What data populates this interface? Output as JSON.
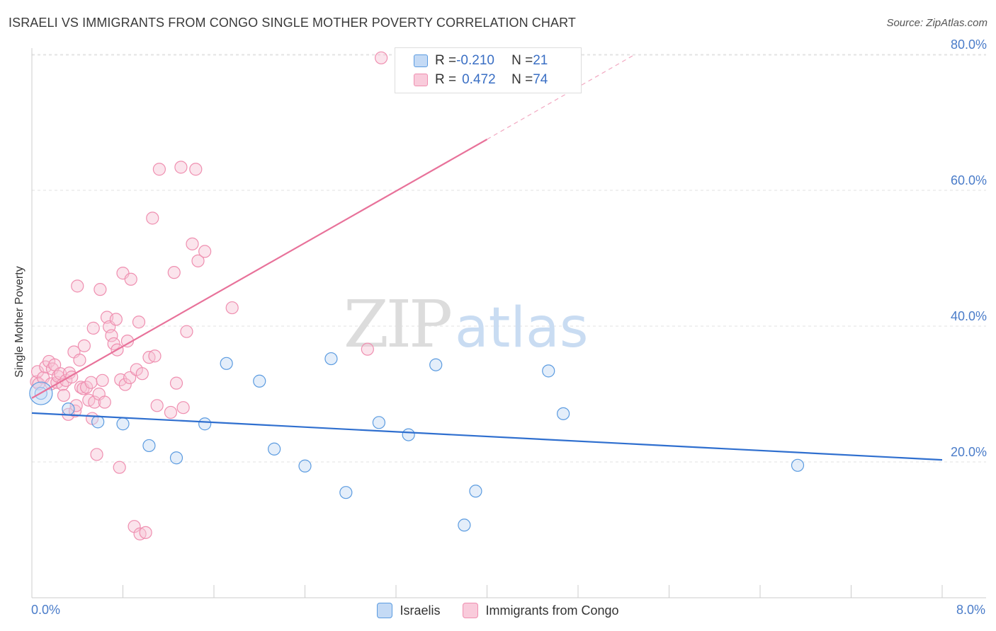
{
  "title": "ISRAELI VS IMMIGRANTS FROM CONGO SINGLE MOTHER POVERTY CORRELATION CHART",
  "source": "Source: ZipAtlas.com",
  "watermark": {
    "part1": "ZIP",
    "part2": "atlas"
  },
  "legend_stats": [
    {
      "r_label": "R = ",
      "r_value": "-0.210",
      "n_label": "N = ",
      "n_value": "21"
    },
    {
      "r_label": "R = ",
      "r_value": "0.472",
      "n_label": "N = ",
      "n_value": "74"
    }
  ],
  "x_min_label": "0.0%",
  "x_max_label": "8.0%",
  "chart_data": {
    "type": "scatter",
    "title": "ISRAELI VS IMMIGRANTS FROM CONGO SINGLE MOTHER POVERTY CORRELATION CHART",
    "xlabel": "",
    "ylabel": "Single Mother Poverty",
    "xlim": [
      0,
      8
    ],
    "ylim": [
      0,
      81
    ],
    "y_ticks": [
      20,
      40,
      60,
      80
    ],
    "y_tick_labels": [
      "20.0%",
      "40.0%",
      "60.0%",
      "80.0%"
    ],
    "grid": "horizontal dashed",
    "legend_position": "bottom-center",
    "colors": {
      "israelis": "#5b9be0",
      "congo": "#ef8fb0",
      "israelis_line": "#2f6fcf",
      "congo_line": "#e8729a",
      "tick_labels": "#4a7cc9"
    },
    "series": [
      {
        "name": "Israelis",
        "color": "#5b9be0",
        "points": [
          [
            0.08,
            30.1
          ],
          [
            0.32,
            27.8
          ],
          [
            0.58,
            25.9
          ],
          [
            0.8,
            25.6
          ],
          [
            1.03,
            22.4
          ],
          [
            1.27,
            20.6
          ],
          [
            1.52,
            25.6
          ],
          [
            1.71,
            34.5
          ],
          [
            2.0,
            31.9
          ],
          [
            2.13,
            21.9
          ],
          [
            2.4,
            19.4
          ],
          [
            2.63,
            35.2
          ],
          [
            2.76,
            15.5
          ],
          [
            3.05,
            25.8
          ],
          [
            3.31,
            24.0
          ],
          [
            3.55,
            34.3
          ],
          [
            3.8,
            10.7
          ],
          [
            3.9,
            15.7
          ],
          [
            4.54,
            33.4
          ],
          [
            4.67,
            27.1
          ],
          [
            6.73,
            19.5
          ]
        ],
        "trend": {
          "x": [
            0,
            8
          ],
          "y": [
            27.2,
            20.3
          ]
        }
      },
      {
        "name": "Immigrants from Congo",
        "color": "#ef8fb0",
        "points": [
          [
            0.04,
            31.8
          ],
          [
            0.05,
            33.3
          ],
          [
            0.06,
            31.5
          ],
          [
            0.1,
            32.4
          ],
          [
            0.12,
            34.0
          ],
          [
            0.15,
            34.8
          ],
          [
            0.17,
            31.5
          ],
          [
            0.18,
            33.7
          ],
          [
            0.2,
            34.3
          ],
          [
            0.22,
            31.7
          ],
          [
            0.23,
            32.6
          ],
          [
            0.25,
            33.0
          ],
          [
            0.27,
            31.4
          ],
          [
            0.28,
            29.8
          ],
          [
            0.3,
            32.0
          ],
          [
            0.32,
            27.0
          ],
          [
            0.33,
            33.1
          ],
          [
            0.35,
            32.5
          ],
          [
            0.37,
            36.2
          ],
          [
            0.38,
            27.5
          ],
          [
            0.39,
            28.3
          ],
          [
            0.4,
            45.9
          ],
          [
            0.42,
            35.0
          ],
          [
            0.43,
            31.0
          ],
          [
            0.45,
            30.8
          ],
          [
            0.46,
            37.1
          ],
          [
            0.48,
            31.0
          ],
          [
            0.5,
            29.1
          ],
          [
            0.52,
            31.7
          ],
          [
            0.53,
            26.4
          ],
          [
            0.54,
            39.7
          ],
          [
            0.55,
            28.8
          ],
          [
            0.57,
            21.1
          ],
          [
            0.59,
            30.0
          ],
          [
            0.6,
            45.4
          ],
          [
            0.62,
            32.0
          ],
          [
            0.64,
            28.8
          ],
          [
            0.66,
            41.3
          ],
          [
            0.68,
            39.9
          ],
          [
            0.7,
            38.6
          ],
          [
            0.72,
            37.4
          ],
          [
            0.74,
            41.0
          ],
          [
            0.75,
            36.5
          ],
          [
            0.77,
            19.2
          ],
          [
            0.78,
            32.1
          ],
          [
            0.8,
            47.8
          ],
          [
            0.82,
            31.4
          ],
          [
            0.84,
            37.8
          ],
          [
            0.86,
            32.4
          ],
          [
            0.87,
            46.9
          ],
          [
            0.9,
            10.5
          ],
          [
            0.92,
            33.6
          ],
          [
            0.94,
            40.6
          ],
          [
            0.95,
            9.4
          ],
          [
            0.97,
            33.0
          ],
          [
            1.0,
            9.6
          ],
          [
            1.03,
            35.4
          ],
          [
            1.06,
            55.9
          ],
          [
            1.08,
            35.6
          ],
          [
            1.1,
            28.3
          ],
          [
            1.12,
            63.1
          ],
          [
            1.22,
            27.3
          ],
          [
            1.25,
            47.9
          ],
          [
            1.27,
            31.6
          ],
          [
            1.31,
            63.4
          ],
          [
            1.33,
            28.0
          ],
          [
            1.36,
            39.2
          ],
          [
            1.41,
            52.1
          ],
          [
            1.44,
            63.1
          ],
          [
            1.46,
            49.6
          ],
          [
            1.52,
            51.0
          ],
          [
            1.76,
            42.7
          ],
          [
            2.95,
            36.6
          ],
          [
            3.07,
            79.5
          ]
        ],
        "trend": {
          "x": [
            0,
            4.0
          ],
          "y": [
            29.4,
            67.5
          ]
        },
        "trend_extension": {
          "x": [
            4.0,
            5.3
          ],
          "y": [
            67.5,
            80.0
          ]
        }
      }
    ]
  }
}
